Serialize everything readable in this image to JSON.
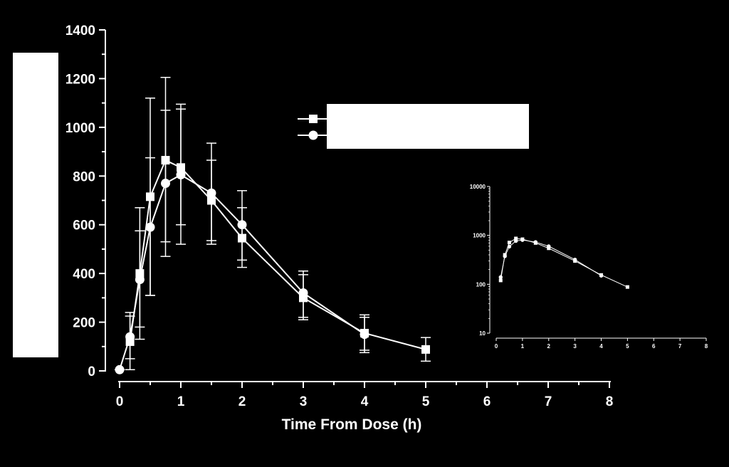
{
  "colors": {
    "background": "#000000",
    "foreground": "#ffffff",
    "inset_background": "#000000"
  },
  "chart_data": [
    {
      "type": "line",
      "xlabel": "Time From Dose (h)",
      "ylabel": "",
      "xlim": [
        0,
        8
      ],
      "ylim": [
        0,
        1400
      ],
      "x_ticks": [
        0,
        1,
        2,
        3,
        4,
        5,
        6,
        7,
        8
      ],
      "y_ticks": [
        0,
        200,
        400,
        600,
        800,
        1000,
        1200,
        1400
      ],
      "y_scale": "linear",
      "grid": false,
      "legend_position": "top-right",
      "series": [
        {
          "marker": "square",
          "x": [
            0.17,
            0.33,
            0.5,
            0.75,
            1,
            1.5,
            2,
            3,
            4,
            5
          ],
          "y": [
            120,
            400,
            715,
            865,
            835,
            700,
            545,
            300,
            155,
            88
          ],
          "error_upper": [
            240,
            670,
            1120,
            1205,
            1095,
            865,
            670,
            395,
            230,
            137
          ],
          "error_lower": [
            5,
            130,
            310,
            530,
            600,
            535,
            425,
            210,
            85,
            40
          ]
        },
        {
          "marker": "circle",
          "x": [
            0,
            0.17,
            0.33,
            0.5,
            0.75,
            1,
            1.5,
            2,
            3,
            4
          ],
          "y": [
            5,
            140,
            375,
            590,
            770,
            805,
            730,
            600,
            320,
            150
          ],
          "error_upper": [
            5,
            225,
            575,
            875,
            1070,
            1075,
            935,
            740,
            410,
            220
          ],
          "error_lower": [
            5,
            50,
            180,
            310,
            470,
            520,
            520,
            455,
            220,
            75
          ]
        }
      ]
    },
    {
      "type": "line",
      "xlabel": "",
      "ylabel": "",
      "xlim": [
        0,
        8
      ],
      "ylim": [
        10,
        10000
      ],
      "x_ticks": [
        0,
        1,
        2,
        3,
        4,
        5,
        6,
        7,
        8
      ],
      "y_ticks": [
        10,
        100,
        1000,
        10000
      ],
      "y_scale": "log",
      "grid": false,
      "series": [
        {
          "marker": "square",
          "x": [
            0.17,
            0.33,
            0.5,
            0.75,
            1,
            1.5,
            2,
            3,
            4,
            5
          ],
          "y": [
            120,
            400,
            715,
            865,
            835,
            700,
            545,
            300,
            155,
            88
          ]
        },
        {
          "marker": "circle",
          "x": [
            0.17,
            0.33,
            0.5,
            0.75,
            1,
            1.5,
            2,
            3,
            4
          ],
          "y": [
            140,
            375,
            590,
            770,
            805,
            730,
            600,
            320,
            150
          ]
        }
      ]
    }
  ]
}
